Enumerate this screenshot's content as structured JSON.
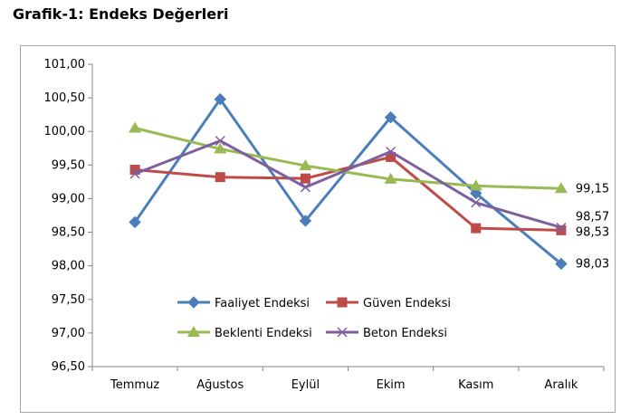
{
  "title": "Grafik-1: Endeks Değerleri",
  "chart_data": {
    "type": "line",
    "categories": [
      "Temmuz",
      "Ağustos",
      "Eylül",
      "Ekim",
      "Kasım",
      "Aralık"
    ],
    "ylim": [
      96.5,
      101.0
    ],
    "ytick_step": 0.5,
    "ytick_labels": [
      "96,50",
      "97,00",
      "97,50",
      "98,00",
      "98,50",
      "99,00",
      "99,50",
      "100,00",
      "100,50",
      "101,00"
    ],
    "grid": false,
    "legend": "bottom-center",
    "series": [
      {
        "name": "Faaliyet Endeksi",
        "color": "#4a7ebb",
        "marker": "diamond",
        "values": [
          98.65,
          100.48,
          98.67,
          100.21,
          99.08,
          98.03
        ],
        "end_label": "98,03"
      },
      {
        "name": "Güven Endeksi",
        "color": "#be4b48",
        "marker": "square",
        "values": [
          99.43,
          99.32,
          99.3,
          99.62,
          98.56,
          98.53
        ],
        "end_label": "98,53"
      },
      {
        "name": "Beklenti Endeksi",
        "color": "#98b954",
        "marker": "triangle",
        "values": [
          100.05,
          99.74,
          99.49,
          99.29,
          99.19,
          99.15
        ],
        "end_label": "99,15"
      },
      {
        "name": "Beton Endeksi",
        "color": "#7d5fa0",
        "marker": "x",
        "values": [
          99.37,
          99.86,
          99.17,
          99.7,
          98.94,
          98.57
        ],
        "end_label": "98,57"
      }
    ]
  }
}
